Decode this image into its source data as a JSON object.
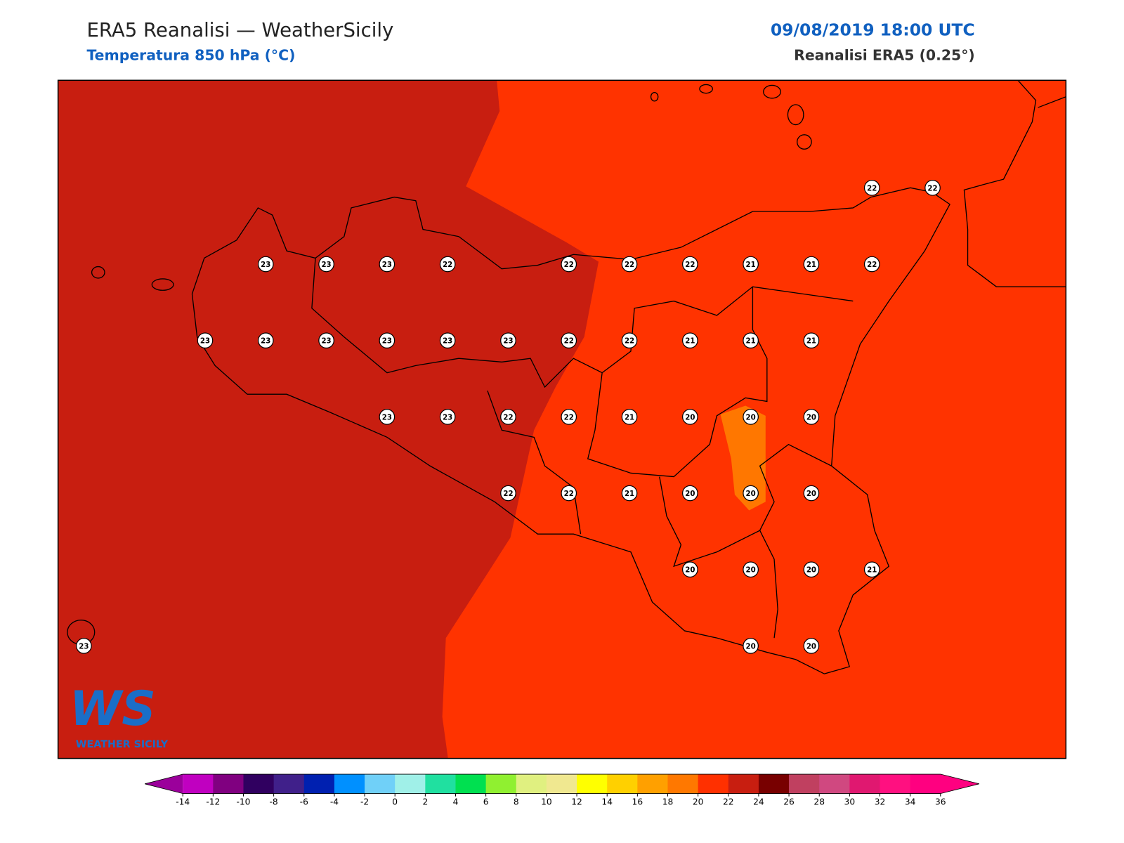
{
  "header": {
    "title": "ERA5 Reanalisi — WeatherSicily",
    "subtitle": "Temperatura 850 hPa (°C)",
    "date": "09/08/2019 18:00 UTC",
    "source": "Reanalisi ERA5 (0.25°)"
  },
  "stations": {
    "rows": [
      [
        null,
        null,
        null,
        null,
        null,
        null,
        null,
        null,
        null,
        null,
        null,
        null,
        null,
        22,
        22
      ],
      [
        null,
        null,
        null,
        23,
        23,
        23,
        22,
        null,
        22,
        22,
        22,
        21,
        21,
        22,
        null
      ],
      [
        null,
        null,
        23,
        23,
        23,
        23,
        23,
        23,
        22,
        22,
        21,
        21,
        21,
        null,
        null
      ],
      [
        null,
        null,
        null,
        null,
        null,
        23,
        23,
        22,
        22,
        21,
        20,
        20,
        20,
        null,
        null
      ],
      [
        null,
        null,
        null,
        null,
        null,
        null,
        null,
        22,
        22,
        21,
        20,
        20,
        20,
        null,
        null
      ],
      [
        null,
        null,
        null,
        null,
        null,
        null,
        null,
        null,
        null,
        null,
        20,
        20,
        20,
        21,
        null
      ],
      [
        23,
        null,
        null,
        null,
        null,
        null,
        null,
        null,
        null,
        null,
        null,
        20,
        20,
        null,
        null
      ]
    ]
  },
  "logo": {
    "mark": "WS",
    "name": "WEATHER SICILY"
  },
  "colorbar": {
    "ticks": [
      -14,
      -12,
      -10,
      -8,
      -6,
      -4,
      -2,
      0,
      2,
      4,
      6,
      8,
      10,
      12,
      14,
      16,
      18,
      20,
      22,
      24,
      26,
      28,
      30,
      32,
      34,
      36
    ],
    "under": "#9b009b",
    "over": "#ff0080",
    "colors": [
      "#c000c0",
      "#800080",
      "#300060",
      "#40208a",
      "#0020b0",
      "#0090ff",
      "#70d0f8",
      "#a0f0e8",
      "#20e0a0",
      "#00e050",
      "#90f030",
      "#e0f080",
      "#f0e890",
      "#ffff00",
      "#ffd000",
      "#ffa000",
      "#ff7800",
      "#ff3000",
      "#c81e10",
      "#780000",
      "#c04060",
      "#d04880",
      "#e01870",
      "#ff1080",
      "#ff0080"
    ]
  }
}
